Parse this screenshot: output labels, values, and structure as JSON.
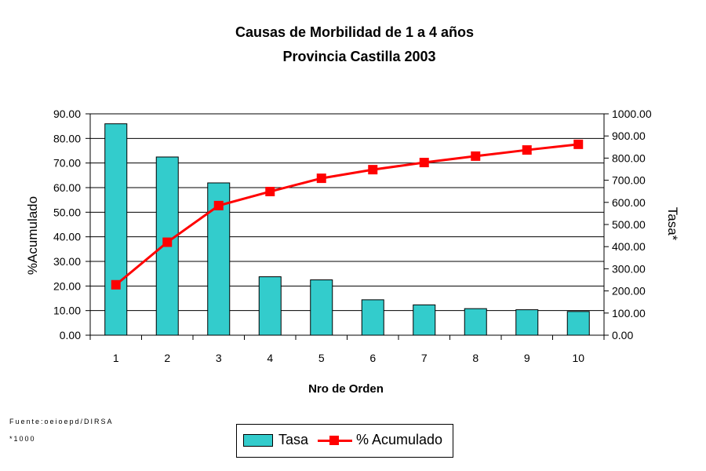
{
  "chart_data": {
    "type": "bar+line",
    "title": "Causas de Morbilidad de 1 a 4  años",
    "subtitle": "Provincia Castilla 2003",
    "xlabel": "Nro de Orden",
    "ylabel_left": "%Acumulado",
    "ylabel_right": "Tasa*",
    "categories": [
      "1",
      "2",
      "3",
      "4",
      "5",
      "6",
      "7",
      "8",
      "9",
      "10"
    ],
    "ylim_left": [
      0,
      90
    ],
    "ylim_right": [
      0,
      1000
    ],
    "yticks_left": [
      "0.00",
      "10.00",
      "20.00",
      "30.00",
      "40.00",
      "50.00",
      "60.00",
      "70.00",
      "80.00",
      "90.00"
    ],
    "yticks_right": [
      "0.00",
      "100.00",
      "200.00",
      "300.00",
      "400.00",
      "500.00",
      "600.00",
      "700.00",
      "800.00",
      "900.00",
      "1000.00"
    ],
    "series": [
      {
        "name": "Tasa",
        "type": "bar",
        "axis": "right",
        "color": "#33cccc",
        "values": [
          955,
          805,
          688,
          264,
          250,
          160,
          137,
          120,
          115,
          107
        ]
      },
      {
        "name": "% Acumulado",
        "type": "line",
        "axis": "left",
        "color": "#ff0000",
        "values": [
          20.5,
          37.8,
          52.7,
          58.4,
          63.8,
          67.3,
          70.2,
          72.8,
          75.3,
          77.6
        ]
      }
    ],
    "grid": "horizontal",
    "legend_position": "bottom"
  },
  "footnotes": {
    "source": "Fuente:oeioepd/DIRSA",
    "scale": "*1000"
  }
}
